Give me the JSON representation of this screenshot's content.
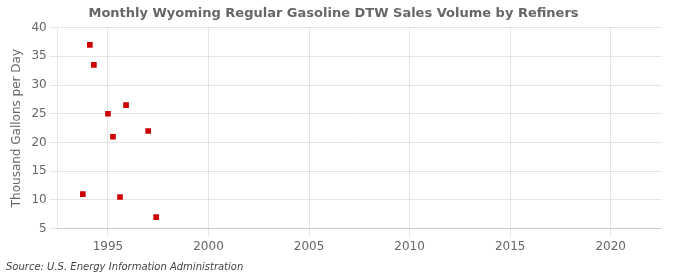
{
  "chart_data": {
    "type": "scatter",
    "title": "Monthly Wyoming Regular Gasoline DTW Sales Volume by Refiners",
    "ylabel": "Thousand Gallons per Day",
    "annotations": [
      "Source: U.S. Energy Information Administration"
    ],
    "x": [
      1993.75,
      1994.1,
      1994.3,
      1995.0,
      1995.25,
      1995.6,
      1995.9,
      1997.0,
      1997.4
    ],
    "values": [
      11.0,
      37.0,
      33.5,
      25.0,
      21.0,
      10.5,
      26.5,
      22.0,
      7.0
    ],
    "color": "#cc0000",
    "marker": "square",
    "xlim": [
      1992.5,
      2022.5
    ],
    "ylim": [
      5,
      40
    ],
    "xticks": [
      1995,
      2000,
      2005,
      2010,
      2015,
      2020
    ],
    "yticks": [
      5,
      10,
      15,
      20,
      25,
      30,
      35,
      40
    ],
    "grid": true
  }
}
